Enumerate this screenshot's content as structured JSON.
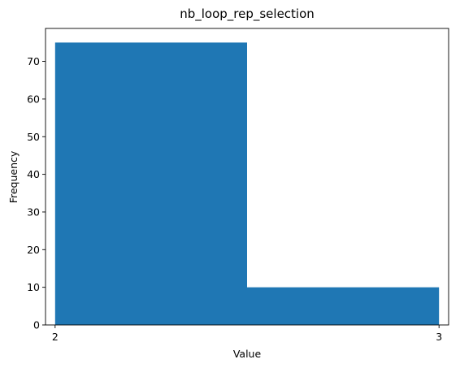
{
  "chart_data": {
    "type": "bar",
    "title": "nb_loop_rep_selection",
    "xlabel": "Value",
    "ylabel": "Frequency",
    "bins": [
      {
        "start": 2.0,
        "end": 2.5,
        "value": 75
      },
      {
        "start": 2.5,
        "end": 3.0,
        "value": 10
      }
    ],
    "xlim": [
      1.975,
      3.025
    ],
    "ylim": [
      0,
      78.75
    ],
    "xticks": [
      2,
      3
    ],
    "yticks": [
      0,
      10,
      20,
      30,
      40,
      50,
      60,
      70
    ],
    "grid": false,
    "bar_color": "#1f77b4"
  }
}
